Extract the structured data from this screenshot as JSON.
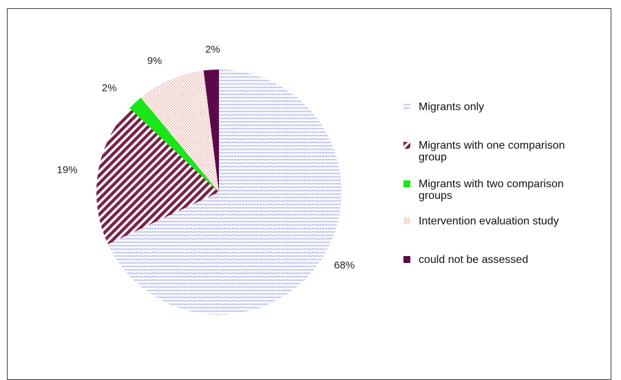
{
  "chart_data": {
    "type": "pie",
    "slices": [
      {
        "label": "Migrants only",
        "value": 68,
        "display": "68%",
        "color": "#9aa0e8",
        "pattern": "zigzag"
      },
      {
        "label": "Migrants with one comparison group",
        "value": 19,
        "display": "19%",
        "color": "#7a2346",
        "pattern": "diagonal-stripes"
      },
      {
        "label": "Migrants with two comparison groups",
        "value": 2,
        "display": "2%",
        "color": "#19e619",
        "pattern": "solid"
      },
      {
        "label": "Intervention evaluation study",
        "value": 9,
        "display": "9%",
        "color": "#e06a5a",
        "pattern": "dots"
      },
      {
        "label": "could not be assessed",
        "value": 2,
        "display": "2%",
        "color": "#5a0a4a",
        "pattern": "solid"
      }
    ],
    "legend_position": "right"
  }
}
